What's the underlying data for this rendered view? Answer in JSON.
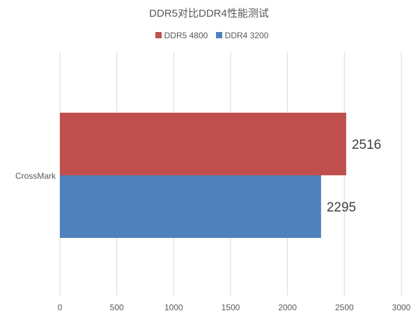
{
  "chart_data": {
    "type": "bar",
    "orientation": "horizontal",
    "title": "DDR5对比DDR4性能测试",
    "categories": [
      "CrossMark"
    ],
    "series": [
      {
        "name": "DDR5 4800",
        "values": [
          2516
        ],
        "color": "#C0504D"
      },
      {
        "name": "DDR4 3200",
        "values": [
          2295
        ],
        "color": "#4F81BD"
      }
    ],
    "xlim": [
      0,
      3000
    ],
    "xticks": [
      0,
      500,
      1000,
      1500,
      2000,
      2500,
      3000
    ],
    "grid": true,
    "legend": "top"
  }
}
